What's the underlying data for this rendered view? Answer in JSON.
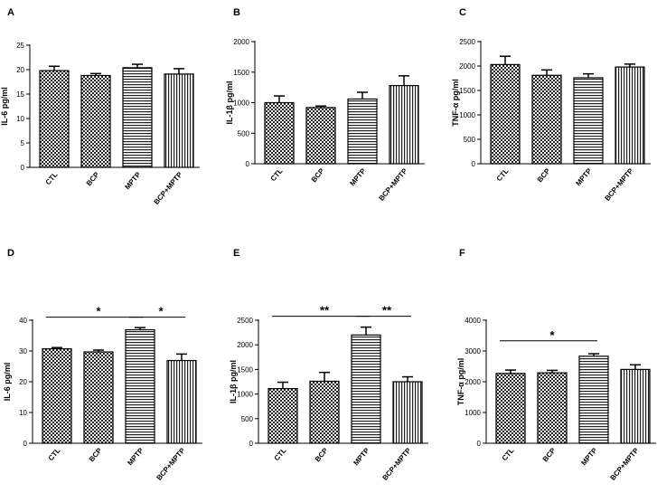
{
  "chart_data": [
    {
      "panel": "A",
      "type": "bar",
      "categories": [
        "CTL",
        "BCP",
        "MPTP",
        "BCP+MPTP"
      ],
      "values": [
        19.8,
        18.8,
        20.4,
        19.1
      ],
      "errors": [
        0.9,
        0.4,
        0.7,
        1.1
      ],
      "ylabel": "IL-6 pg/ml",
      "ylim": [
        0,
        25
      ],
      "yticks": [
        0,
        5,
        10,
        15,
        20,
        25
      ],
      "significance": []
    },
    {
      "panel": "B",
      "type": "bar",
      "categories": [
        "CTL",
        "BCP",
        "MPTP",
        "BCP+MPTP"
      ],
      "values": [
        1000,
        920,
        1060,
        1280
      ],
      "errors": [
        110,
        25,
        110,
        160
      ],
      "ylabel": "IL-1β pg/ml",
      "ylim": [
        0,
        2000
      ],
      "yticks": [
        0,
        500,
        1000,
        1500,
        2000
      ],
      "significance": []
    },
    {
      "panel": "C",
      "type": "bar",
      "categories": [
        "CTL",
        "BCP",
        "MPTP",
        "BCP+MPTP"
      ],
      "values": [
        2030,
        1810,
        1760,
        1980
      ],
      "errors": [
        170,
        110,
        80,
        60
      ],
      "ylabel": "TNF-α pg/ml",
      "ylim": [
        0,
        2500
      ],
      "yticks": [
        0,
        500,
        1000,
        1500,
        2000,
        2500
      ],
      "significance": []
    },
    {
      "panel": "D",
      "type": "bar",
      "categories": [
        "CTL",
        "BCP",
        "MPTP",
        "BCP+MPTP"
      ],
      "values": [
        30.7,
        29.7,
        36.9,
        26.9
      ],
      "errors": [
        0.4,
        0.6,
        0.7,
        2.1
      ],
      "ylabel": "IL-6 pg/ml",
      "ylim": [
        0,
        40
      ],
      "yticks": [
        0,
        10,
        20,
        30,
        40
      ],
      "significance": [
        {
          "from": 0,
          "to": 2,
          "label": "*",
          "y": 41
        },
        {
          "from": 2,
          "to": 3,
          "label": "*",
          "y": 41
        }
      ]
    },
    {
      "panel": "E",
      "type": "bar",
      "categories": [
        "CTL",
        "BCP",
        "MPTP",
        "BCP+MPTP"
      ],
      "values": [
        1110,
        1260,
        2200,
        1250
      ],
      "errors": [
        130,
        180,
        160,
        100
      ],
      "ylabel": "IL-1β pg/ml",
      "ylim": [
        0,
        2500
      ],
      "yticks": [
        0,
        500,
        1000,
        1500,
        2000,
        2500
      ],
      "significance": [
        {
          "from": 0,
          "to": 2,
          "label": "**",
          "y": 2580
        },
        {
          "from": 2,
          "to": 3,
          "label": "**",
          "y": 2580
        }
      ]
    },
    {
      "panel": "F",
      "type": "bar",
      "categories": [
        "CTL",
        "BCP",
        "MPTP",
        "BCP+MPTP"
      ],
      "values": [
        2270,
        2290,
        2830,
        2400
      ],
      "errors": [
        110,
        80,
        80,
        150
      ],
      "ylabel": "TNF-α pg/ml",
      "ylim": [
        0,
        4000
      ],
      "yticks": [
        0,
        1000,
        2000,
        3000,
        4000
      ],
      "significance": [
        {
          "from": 0,
          "to": 2,
          "label": "*",
          "y": 3330
        }
      ]
    }
  ]
}
